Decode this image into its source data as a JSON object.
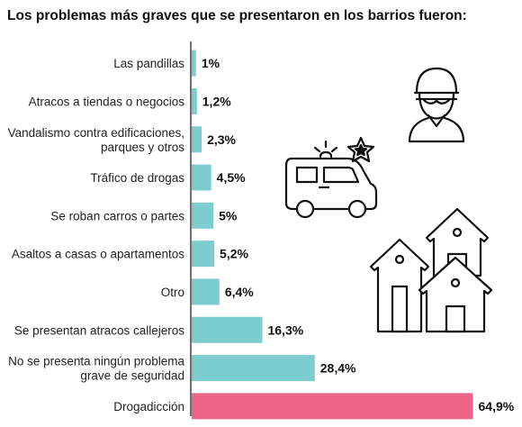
{
  "chart_data": {
    "type": "bar",
    "orientation": "horizontal",
    "title": "Los problemas más graves que se presentaron en los barrios fueron:",
    "categories": [
      [
        "Las pandillas"
      ],
      [
        "Atracos a tiendas o negocios"
      ],
      [
        "Vandalismo contra edificaciones,",
        "parques y otros"
      ],
      [
        "Tráfico de drogas"
      ],
      [
        "Se roban carros o partes"
      ],
      [
        "Asaltos a casas o apartamentos"
      ],
      [
        "Otro"
      ],
      [
        "Se presentan atracos callejeros"
      ],
      [
        "No se presenta ningún problema",
        "grave de seguridad"
      ],
      [
        "Drogadicción"
      ]
    ],
    "values": [
      1,
      1.2,
      2.3,
      4.5,
      5,
      5.2,
      6.4,
      16.3,
      28.4,
      64.9
    ],
    "value_labels": [
      "1%",
      "1,2%",
      "2,3%",
      "4,5%",
      "5%",
      "5,2%",
      "6,4%",
      "16,3%",
      "28,4%",
      "64,9%"
    ],
    "xlim": [
      0,
      65
    ],
    "bar_color": "#7ecdce",
    "highlight_color": "#ec6486",
    "highlight_index": 9,
    "grid": false,
    "legend": "none"
  },
  "icons": [
    "thief-icon",
    "police-car-icon",
    "houses-icon"
  ]
}
